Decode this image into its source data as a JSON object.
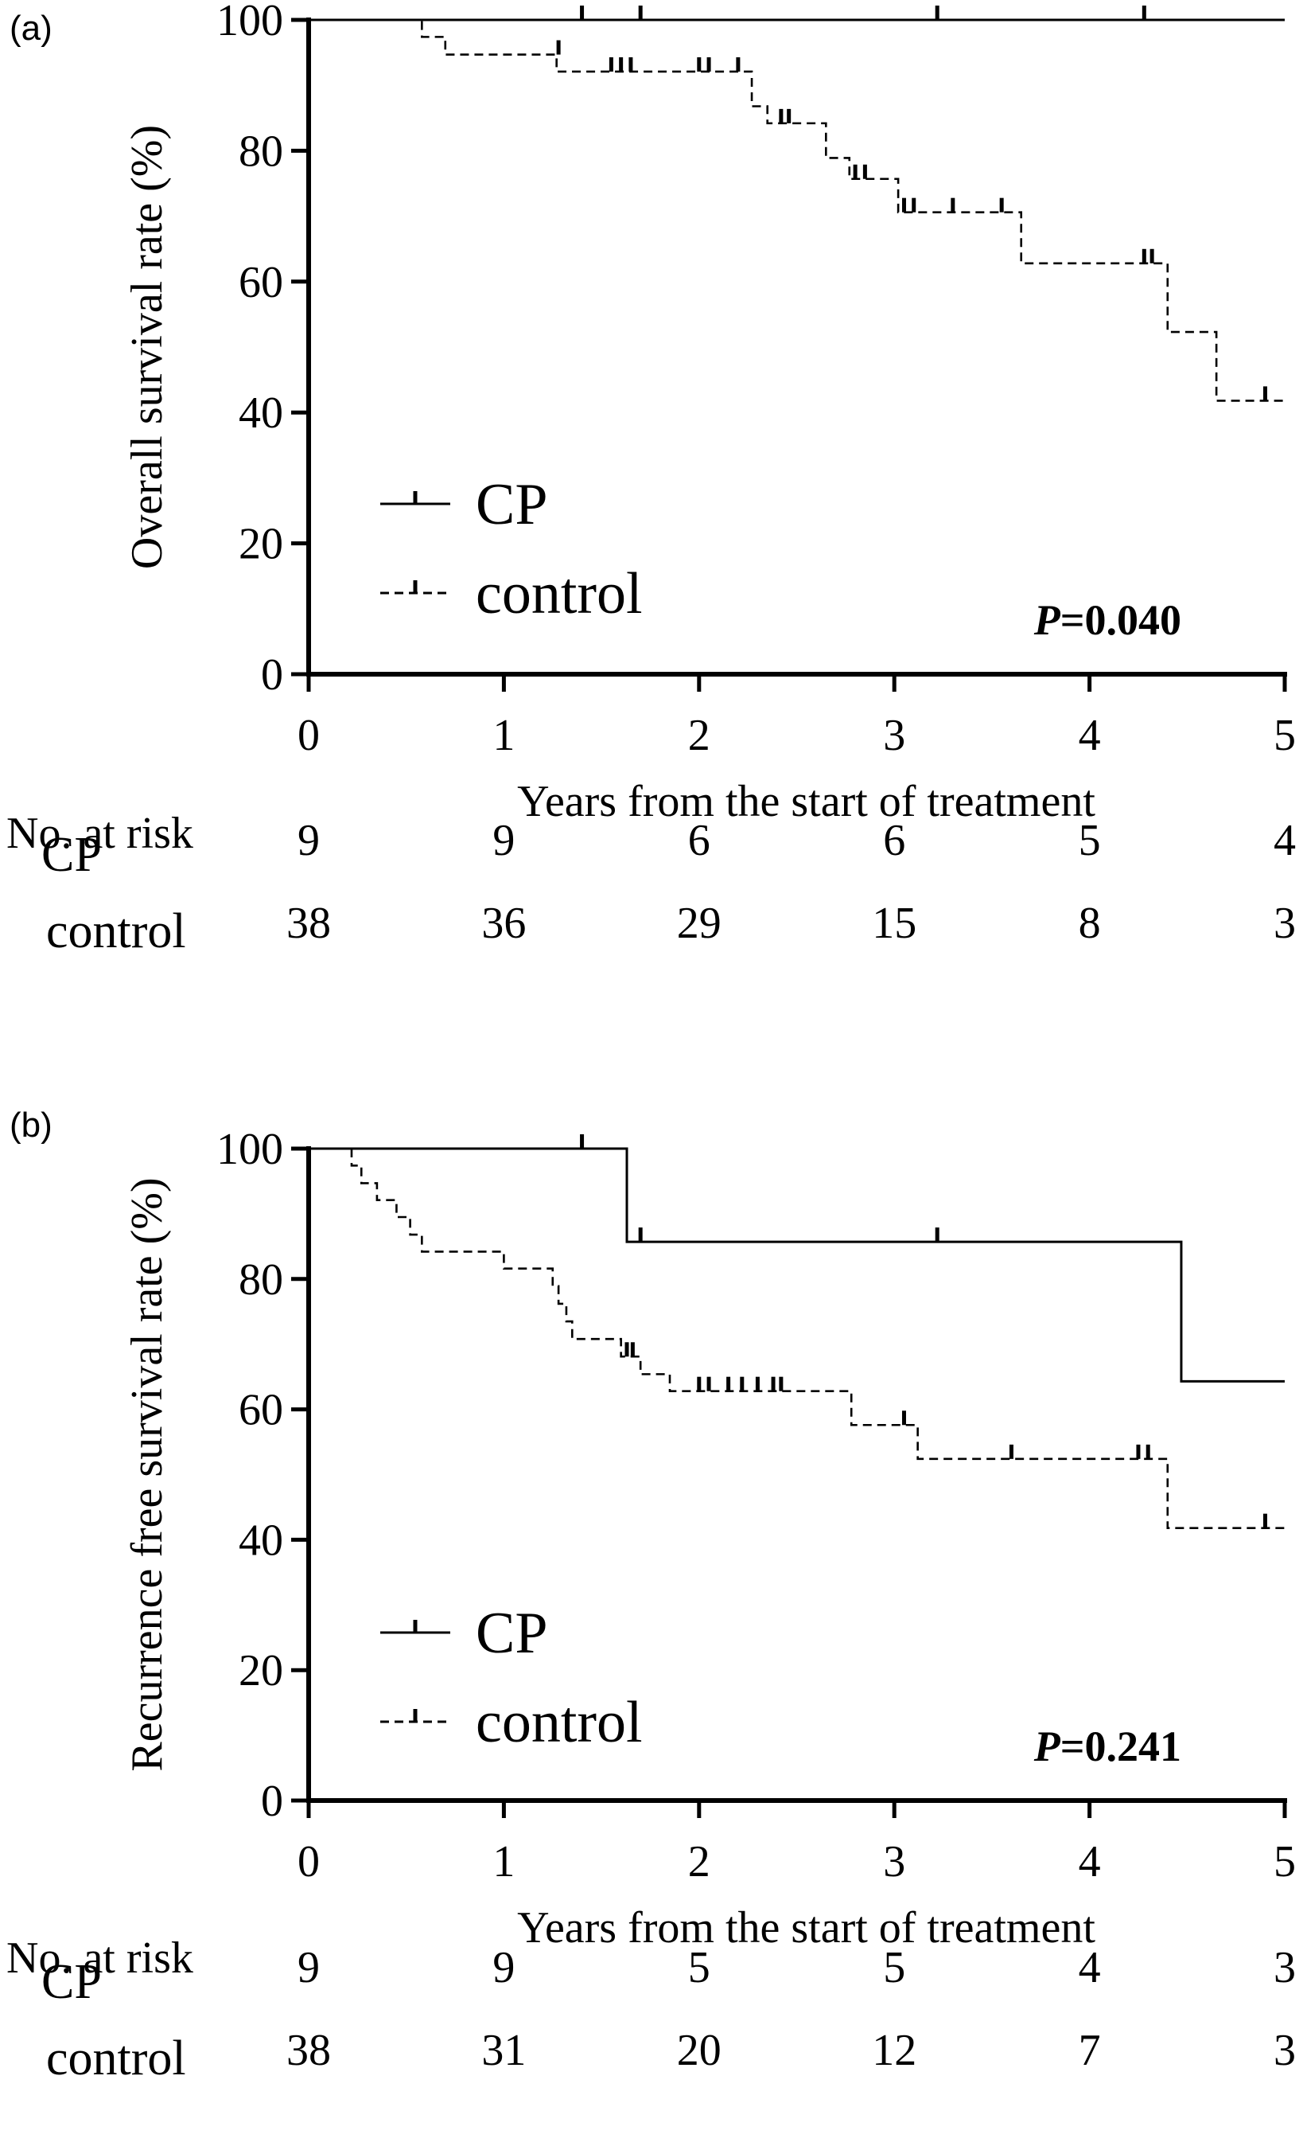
{
  "chart_data": [
    {
      "type": "line",
      "subtype": "kaplan-meier",
      "panel_label": "(a)",
      "title": "",
      "xlabel": "Years from the start of treatment",
      "ylabel": "Overall survival rate (%)",
      "xlim": [
        0,
        5
      ],
      "ylim": [
        0,
        100
      ],
      "x_ticks": [
        "0",
        "1",
        "2",
        "3",
        "4",
        "5"
      ],
      "y_ticks": [
        "0",
        "20",
        "40",
        "60",
        "80",
        "100"
      ],
      "legend_position": "lower-left",
      "annotation": {
        "p_label": "P",
        "p_value": "=0.040"
      },
      "series": [
        {
          "name": "CP",
          "style": "solid",
          "steps": [
            [
              0,
              100
            ],
            [
              5,
              100
            ]
          ],
          "censor": [
            [
              1.4,
              100
            ],
            [
              1.7,
              100
            ],
            [
              3.22,
              100
            ],
            [
              4.28,
              100
            ]
          ]
        },
        {
          "name": "control",
          "style": "dashed",
          "steps": [
            [
              0,
              100
            ],
            [
              0.58,
              97.4
            ],
            [
              0.7,
              94.7
            ],
            [
              1.27,
              92.1
            ],
            [
              2.27,
              86.8
            ],
            [
              2.35,
              84.2
            ],
            [
              2.65,
              78.9
            ],
            [
              2.77,
              75.7
            ],
            [
              3.02,
              70.6
            ],
            [
              3.65,
              62.8
            ],
            [
              4.4,
              52.3
            ],
            [
              4.65,
              41.8
            ],
            [
              5,
              41.8
            ]
          ],
          "censor": [
            [
              1.28,
              94.7
            ],
            [
              1.55,
              92.1
            ],
            [
              1.6,
              92.1
            ],
            [
              1.65,
              92.1
            ],
            [
              2.0,
              92.1
            ],
            [
              2.05,
              92.1
            ],
            [
              2.2,
              92.1
            ],
            [
              2.42,
              84.2
            ],
            [
              2.46,
              84.2
            ],
            [
              2.8,
              75.7
            ],
            [
              2.85,
              75.7
            ],
            [
              3.05,
              70.6
            ],
            [
              3.1,
              70.6
            ],
            [
              3.3,
              70.6
            ],
            [
              3.55,
              70.6
            ],
            [
              4.28,
              62.8
            ],
            [
              4.32,
              62.8
            ],
            [
              4.9,
              41.8
            ]
          ]
        }
      ],
      "risk_table": {
        "header": "No. at risk",
        "rows": [
          {
            "group": "CP",
            "values": [
              "9",
              "9",
              "6",
              "6",
              "5",
              "4"
            ]
          },
          {
            "group": "control",
            "values": [
              "38",
              "36",
              "29",
              "15",
              "8",
              "3"
            ]
          }
        ]
      }
    },
    {
      "type": "line",
      "subtype": "kaplan-meier",
      "panel_label": "(b)",
      "title": "",
      "xlabel": "Years from the start of treatment",
      "ylabel": "Recurrence free survival rate (%)",
      "xlim": [
        0,
        5
      ],
      "ylim": [
        0,
        100
      ],
      "x_ticks": [
        "0",
        "1",
        "2",
        "3",
        "4",
        "5"
      ],
      "y_ticks": [
        "0",
        "20",
        "40",
        "60",
        "80",
        "100"
      ],
      "legend_position": "lower-left",
      "annotation": {
        "p_label": "P",
        "p_value": "=0.241"
      },
      "series": [
        {
          "name": "CP",
          "style": "solid",
          "steps": [
            [
              0,
              100
            ],
            [
              1.63,
              85.7
            ],
            [
              4.47,
              64.3
            ],
            [
              5,
              64.3
            ]
          ],
          "censor": [
            [
              1.4,
              100
            ],
            [
              1.7,
              85.7
            ],
            [
              3.22,
              85.7
            ]
          ]
        },
        {
          "name": "control",
          "style": "dashed",
          "steps": [
            [
              0,
              100
            ],
            [
              0.22,
              97.4
            ],
            [
              0.27,
              94.7
            ],
            [
              0.35,
              92.1
            ],
            [
              0.45,
              89.5
            ],
            [
              0.52,
              86.8
            ],
            [
              0.58,
              84.2
            ],
            [
              1.0,
              81.6
            ],
            [
              1.25,
              78.9
            ],
            [
              1.28,
              76.2
            ],
            [
              1.32,
              73.5
            ],
            [
              1.35,
              70.8
            ],
            [
              1.6,
              68.1
            ],
            [
              1.7,
              65.4
            ],
            [
              1.85,
              62.8
            ],
            [
              2.78,
              57.6
            ],
            [
              3.12,
              52.4
            ],
            [
              4.4,
              41.8
            ],
            [
              5,
              41.8
            ]
          ],
          "censor": [
            [
              1.63,
              68.1
            ],
            [
              1.66,
              68.1
            ],
            [
              2.0,
              62.8
            ],
            [
              2.05,
              62.8
            ],
            [
              2.15,
              62.8
            ],
            [
              2.22,
              62.8
            ],
            [
              2.3,
              62.8
            ],
            [
              2.38,
              62.8
            ],
            [
              2.42,
              62.8
            ],
            [
              3.05,
              57.6
            ],
            [
              3.6,
              52.4
            ],
            [
              4.25,
              52.4
            ],
            [
              4.3,
              52.4
            ],
            [
              4.9,
              41.8
            ]
          ]
        }
      ],
      "risk_table": {
        "header": "No. at risk",
        "rows": [
          {
            "group": "CP",
            "values": [
              "9",
              "9",
              "5",
              "5",
              "4",
              "3"
            ]
          },
          {
            "group": "control",
            "values": [
              "38",
              "31",
              "20",
              "12",
              "7",
              "3"
            ]
          }
        ]
      }
    }
  ]
}
